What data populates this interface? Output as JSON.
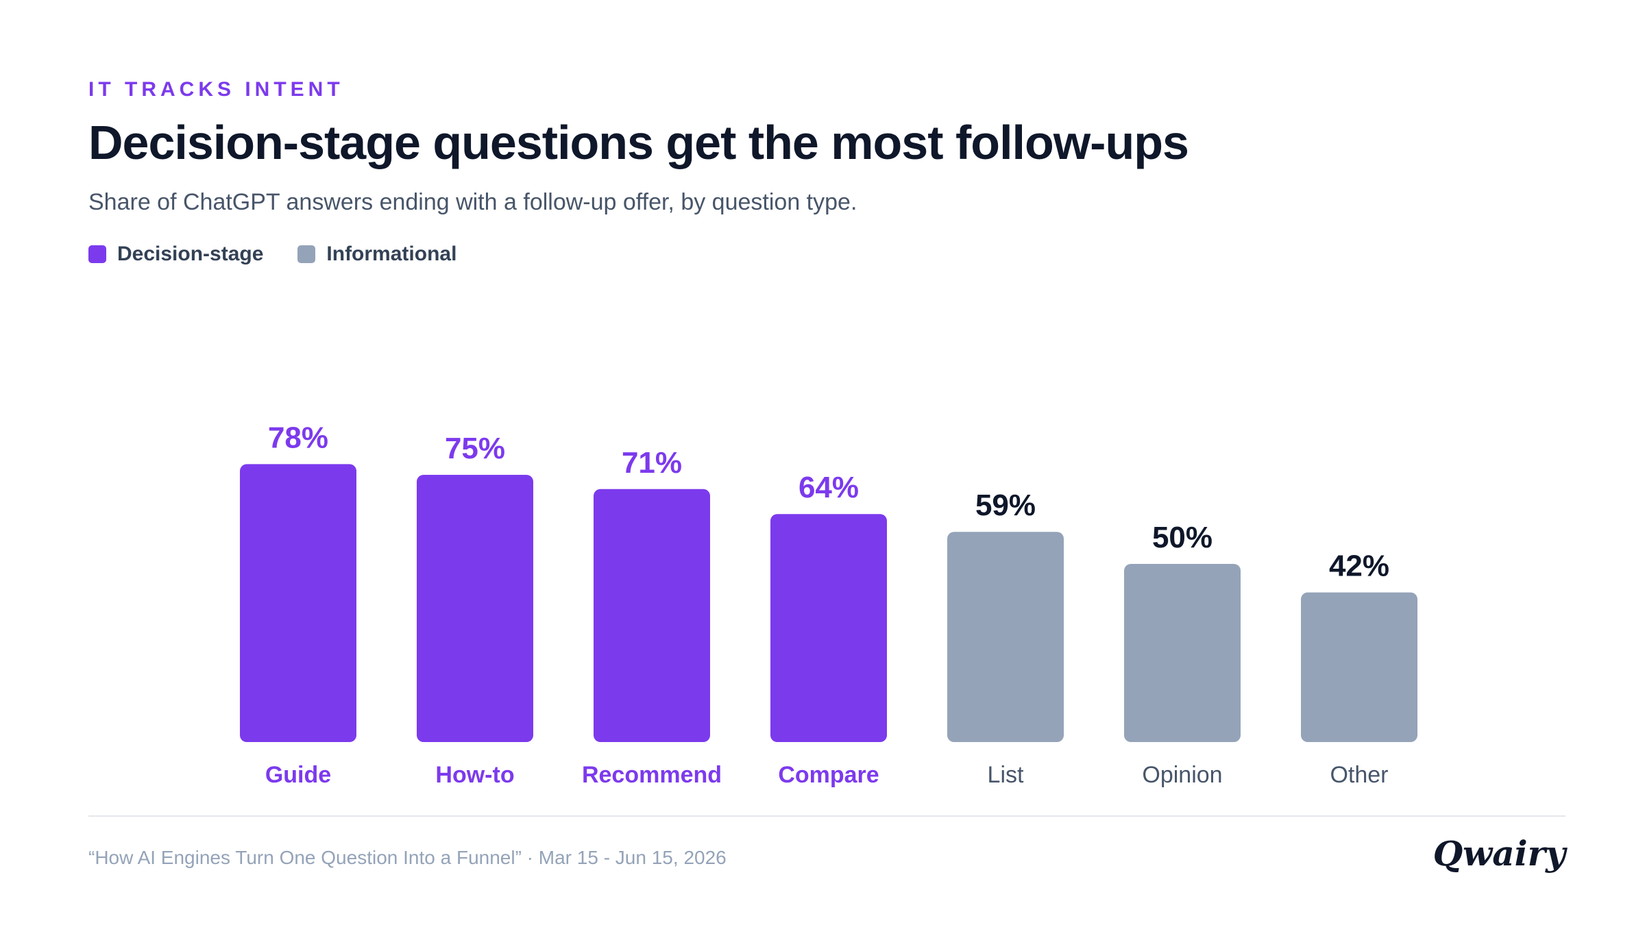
{
  "header": {
    "eyebrow": "IT TRACKS INTENT",
    "title": "Decision-stage questions get the most follow-ups",
    "subtitle": "Share of ChatGPT answers ending with a follow-up offer, by question type."
  },
  "legend": [
    {
      "label": "Decision-stage",
      "color": "#7c3aed"
    },
    {
      "label": "Informational",
      "color": "#94a3b8"
    }
  ],
  "chart_data": {
    "type": "bar",
    "categories": [
      "Guide",
      "How-to",
      "Recommend",
      "Compare",
      "List",
      "Opinion",
      "Other"
    ],
    "values": [
      78,
      75,
      71,
      64,
      59,
      50,
      42
    ],
    "value_labels": [
      "78%",
      "75%",
      "71%",
      "64%",
      "59%",
      "50%",
      "42%"
    ],
    "groups": [
      "Decision-stage",
      "Decision-stage",
      "Decision-stage",
      "Decision-stage",
      "Informational",
      "Informational",
      "Informational"
    ],
    "unit": "%",
    "ylim": [
      0,
      100
    ],
    "grid": false,
    "legend_position": "top-left",
    "colors": {
      "Decision-stage": "#7c3aed",
      "Informational": "#94a3b8",
      "decision_label": "#7c3aed",
      "informational_label": "#0f172a",
      "informational_category": "#475569"
    }
  },
  "footer": {
    "note": "“How AI Engines Turn One Question Into a Funnel” · Mar 15 - Jun 15, 2026",
    "brand": "Qwairy"
  }
}
